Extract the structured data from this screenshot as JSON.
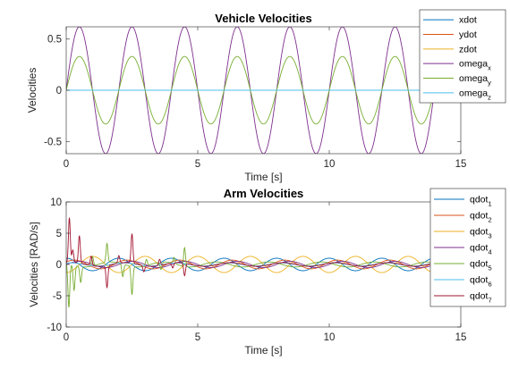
{
  "chart_data": [
    {
      "type": "line",
      "title": "Vehicle Velocities",
      "xlabel": "Time [s]",
      "ylabel": "Velocities",
      "xlim": [
        0,
        15
      ],
      "ylim": [
        -0.62,
        0.62
      ],
      "xticks": [
        0,
        5,
        10,
        15
      ],
      "yticks": [
        -0.5,
        0,
        0.5
      ],
      "ytick_labels": [
        "-0.5",
        "0",
        "0.5"
      ],
      "x_end": 14,
      "grid": false,
      "legend_position": "top-right",
      "series": [
        {
          "name": "xdot",
          "sub": "",
          "color": "#0072BD",
          "kind": "const",
          "value": 0
        },
        {
          "name": "ydot",
          "sub": "",
          "color": "#D95319",
          "kind": "const",
          "value": 0
        },
        {
          "name": "zdot",
          "sub": "",
          "color": "#EDB120",
          "kind": "const",
          "value": 0
        },
        {
          "name": "omega",
          "sub": "x",
          "color": "#7E2F8E",
          "kind": "sine",
          "amplitude": 0.62,
          "period": 2.0,
          "phase": 0
        },
        {
          "name": "omega",
          "sub": "y",
          "color": "#77AC30",
          "kind": "sine",
          "amplitude": 0.33,
          "period": 2.0,
          "phase": 0
        },
        {
          "name": "omega",
          "sub": "z",
          "color": "#4DBEEE",
          "kind": "const",
          "value": 0
        }
      ]
    },
    {
      "type": "line",
      "title": "Arm Velocities",
      "xlabel": "Time [s]",
      "ylabel": "Velocities [RAD/s]",
      "xlim": [
        0,
        15
      ],
      "ylim": [
        -10,
        10
      ],
      "xticks": [
        0,
        5,
        10,
        15
      ],
      "yticks": [
        -10,
        -5,
        0,
        5,
        10
      ],
      "ytick_labels": [
        "-10",
        "-5",
        "0",
        "5",
        "10"
      ],
      "x_end": 14,
      "grid": false,
      "legend_position": "top-right",
      "series": [
        {
          "name": "qdot",
          "sub": "1",
          "color": "#0072BD",
          "kind": "sine",
          "amplitude": 1.0,
          "period": 2.0,
          "phase": 1.57
        },
        {
          "name": "qdot",
          "sub": "2",
          "color": "#D95319",
          "kind": "sine",
          "amplitude": 0.7,
          "period": 2.0,
          "phase": 0.6
        },
        {
          "name": "qdot",
          "sub": "3",
          "color": "#EDB120",
          "kind": "sine",
          "amplitude": 1.3,
          "period": 2.0,
          "phase": -1.57
        },
        {
          "name": "qdot",
          "sub": "4",
          "color": "#7E2F8E",
          "kind": "sine",
          "amplitude": 0.5,
          "period": 2.0,
          "phase": 0
        },
        {
          "name": "qdot",
          "sub": "5",
          "color": "#77AC30",
          "kind": "spiky",
          "amplitude": 0.4,
          "period": 2.0,
          "phase": 2.5,
          "spikes": [
            [
              0.1,
              -7.0
            ],
            [
              0.3,
              -4.0
            ],
            [
              0.55,
              -2.5
            ],
            [
              1.0,
              1.5
            ],
            [
              1.55,
              3.0
            ],
            [
              2.15,
              -2.0
            ],
            [
              2.5,
              -4.5
            ],
            [
              3.05,
              1.0
            ],
            [
              3.6,
              -1.2
            ],
            [
              4.1,
              1.0
            ],
            [
              4.5,
              3.0
            ]
          ]
        },
        {
          "name": "qdot",
          "sub": "6",
          "color": "#4DBEEE",
          "kind": "sine",
          "amplitude": 0.25,
          "period": 2.0,
          "phase": 1.0
        },
        {
          "name": "qdot",
          "sub": "7",
          "color": "#A2142F",
          "kind": "spiky",
          "amplitude": 0.3,
          "period": 2.0,
          "phase": 0.8,
          "spikes": [
            [
              0.12,
              7.2
            ],
            [
              0.25,
              2.0
            ],
            [
              0.5,
              4.4
            ],
            [
              0.95,
              1.5
            ],
            [
              1.55,
              -3.5
            ],
            [
              2.0,
              1.2
            ],
            [
              2.5,
              4.7
            ],
            [
              2.95,
              -1.0
            ],
            [
              3.55,
              1.0
            ],
            [
              4.05,
              -0.8
            ],
            [
              4.5,
              -2.0
            ]
          ]
        }
      ]
    }
  ]
}
